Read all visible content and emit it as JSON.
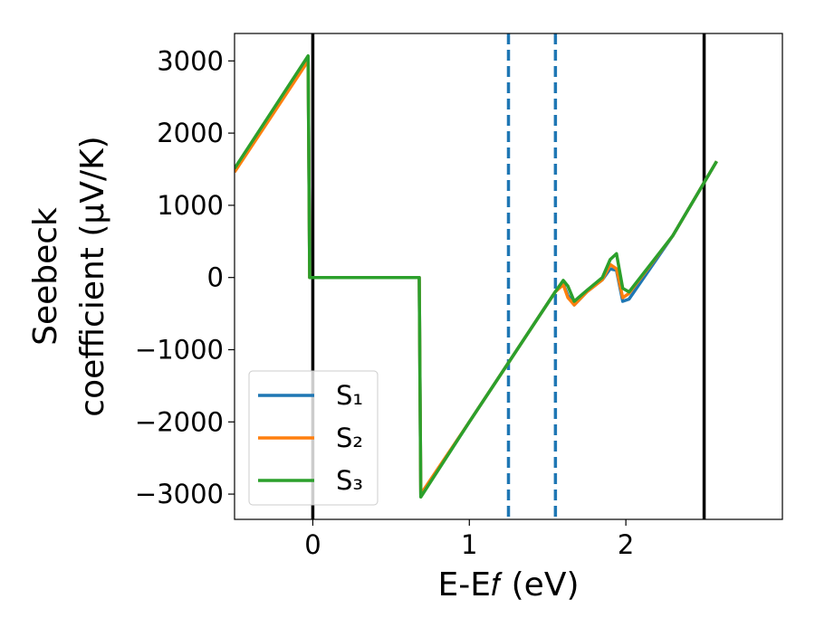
{
  "chart_data": {
    "type": "line",
    "xlabel": "E-E𝑓 (eV)",
    "ylabel": [
      "Seebeck",
      "coefficient  (μV/K)"
    ],
    "x": [
      -0.5,
      -0.03,
      -0.02,
      0.68,
      0.69,
      1.0,
      1.25,
      1.55,
      1.6,
      1.63,
      1.67,
      1.75,
      1.85,
      1.9,
      1.94,
      1.98,
      2.02,
      2.3,
      2.58
    ],
    "series": [
      {
        "name": "S₁",
        "color": "#1f77b4",
        "values": [
          1480,
          3050,
          0,
          0,
          -3030,
          -2000,
          -1180,
          -195,
          -90,
          -250,
          -380,
          -200,
          -30,
          120,
          100,
          -330,
          -300,
          580,
          1610
        ]
      },
      {
        "name": "S₂",
        "color": "#ff7f0e",
        "values": [
          1460,
          3000,
          0,
          0,
          -3000,
          -2000,
          -1180,
          -195,
          -100,
          -280,
          -380,
          -200,
          -30,
          180,
          120,
          -280,
          -220,
          580,
          1610
        ]
      },
      {
        "name": "S₃",
        "color": "#2ca02c",
        "values": [
          1510,
          3070,
          0,
          0,
          -3040,
          -2000,
          -1180,
          -195,
          -40,
          -120,
          -330,
          -180,
          0,
          250,
          330,
          -150,
          -200,
          580,
          1610
        ]
      }
    ],
    "vlines": [
      {
        "x": 0,
        "color": "#000000",
        "style": "solid"
      },
      {
        "x": 2.5,
        "color": "#000000",
        "style": "solid"
      },
      {
        "x": 1.25,
        "color": "#1f77b4",
        "style": "dashed"
      },
      {
        "x": 1.55,
        "color": "#1f77b4",
        "style": "dashed"
      }
    ],
    "xlim": [
      -0.5,
      3.0
    ],
    "xticks": [
      0,
      1,
      2
    ],
    "ylim": [
      -3350,
      3380
    ],
    "yticks": [
      {
        "value": -3000,
        "label": "−3000"
      },
      {
        "value": -2000,
        "label": "−2000"
      },
      {
        "value": -1000,
        "label": "−1000"
      },
      0,
      1000,
      2000,
      3000
    ],
    "grid": false,
    "legend": "lower left"
  }
}
